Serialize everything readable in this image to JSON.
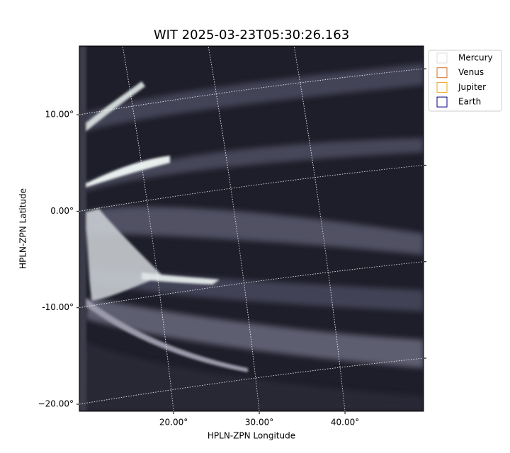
{
  "chart_data": {
    "type": "image",
    "title": "WIT 2025-03-23T05:30:26.163",
    "xlabel": "HPLN-ZPN Longitude",
    "ylabel": "HPLN-ZPN Latitude",
    "xlim": [
      9.0,
      49.17
    ],
    "ylim": [
      -20.73,
      17.12
    ],
    "xticks": [
      {
        "value": 20,
        "label": "20.00°"
      },
      {
        "value": 30,
        "label": "30.00°"
      },
      {
        "value": 40,
        "label": "40.00°"
      }
    ],
    "yticks": [
      {
        "value": 10,
        "label": "10.00°"
      },
      {
        "value": 0,
        "label": "0.00°"
      },
      {
        "value": -10,
        "label": "-10.00°"
      },
      {
        "value": -20,
        "label": "−20.00°"
      }
    ],
    "grid": true,
    "legend": {
      "position": "upper right outside",
      "entries": [
        {
          "name": "Mercury",
          "color": "#dddddd"
        },
        {
          "name": "Venus",
          "color": "#d2722e"
        },
        {
          "name": "Jupiter",
          "color": "#e6aa1a"
        },
        {
          "name": "Earth",
          "color": "#000080"
        }
      ]
    }
  }
}
